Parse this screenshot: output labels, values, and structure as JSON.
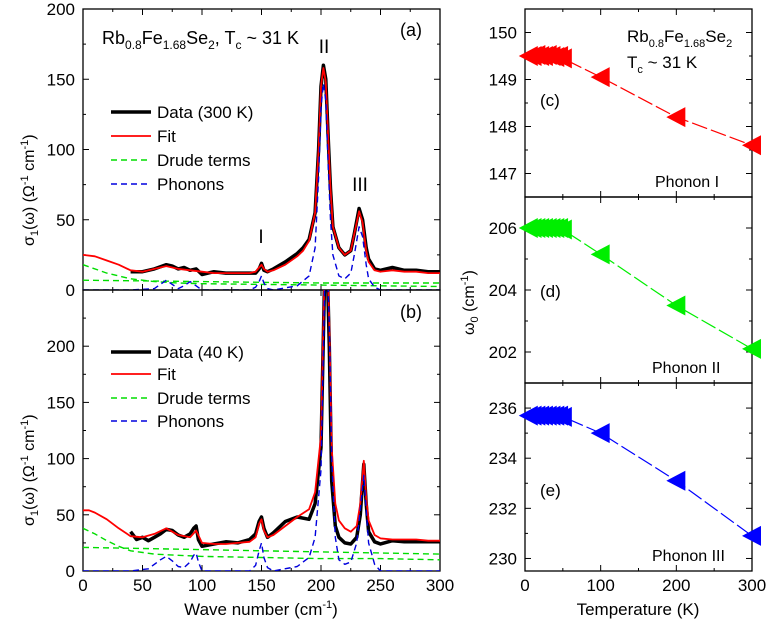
{
  "chart_data": [
    {
      "id": "a",
      "type": "line",
      "panel_label": "(a)",
      "title": "Rb0.8Fe1.68Se2, Tc ~ 31 K",
      "title_parts": {
        "el1": "Rb",
        "sub1": "0.8",
        "el2": "Fe",
        "sub2": "1.68",
        "el3": "Se",
        "sub3": "2",
        "sep": ", ",
        "tc": "T",
        "tc_sub": "c",
        "tc_val": " ~ 31 K"
      },
      "xlabel": "",
      "ylabel": "σ1(ω) (Ω-1 cm-1)",
      "ylabel_parts": {
        "a": "σ",
        "b": "1",
        "c": "(ω) (Ω",
        "d": "-1",
        "e": " cm",
        "f": "-1",
        "g": ")"
      },
      "xlim": [
        0,
        300
      ],
      "ylim": [
        0,
        200
      ],
      "yticks": [
        "0",
        "50",
        "100",
        "150",
        "200"
      ],
      "grid": false,
      "legend_position": "middle-left",
      "annotations": [
        {
          "text": "I",
          "x": 150,
          "y": 27
        },
        {
          "text": "II",
          "x": 202,
          "y": 174
        },
        {
          "text": "III",
          "x": 234,
          "y": 67
        }
      ],
      "legend": [
        "Data (300 K)",
        "Fit",
        "Drude terms",
        "Phonons"
      ],
      "series": [
        {
          "name": "Data (300 K)",
          "color": "#000000",
          "style": "solid",
          "x": [
            40,
            50,
            60,
            70,
            75,
            80,
            85,
            90,
            95,
            100,
            110,
            120,
            130,
            140,
            145,
            148,
            150,
            152,
            155,
            160,
            170,
            180,
            185,
            190,
            195,
            198,
            200,
            202,
            204,
            206,
            208,
            210,
            215,
            220,
            225,
            228,
            232,
            235,
            238,
            240,
            245,
            250,
            260,
            270,
            280,
            290,
            300
          ],
          "y": [
            13,
            13,
            15,
            18,
            17,
            15,
            16,
            14,
            15,
            11,
            13,
            12,
            12,
            12,
            12,
            15,
            19,
            14,
            13,
            15,
            20,
            26,
            30,
            36,
            55,
            100,
            145,
            160,
            150,
            110,
            72,
            45,
            30,
            25,
            28,
            40,
            58,
            50,
            30,
            22,
            15,
            14,
            16,
            14,
            14,
            13,
            13
          ]
        },
        {
          "name": "Fit",
          "color": "#ff0000",
          "style": "solid",
          "x": [
            0,
            10,
            20,
            30,
            40,
            50,
            60,
            70,
            80,
            90,
            100,
            110,
            120,
            130,
            140,
            145,
            148,
            150,
            152,
            155,
            160,
            170,
            180,
            185,
            190,
            195,
            198,
            200,
            202,
            204,
            206,
            208,
            210,
            215,
            220,
            225,
            228,
            232,
            235,
            238,
            240,
            245,
            250,
            260,
            270,
            280,
            290,
            300
          ],
          "y": [
            25,
            24,
            21,
            18,
            14,
            13,
            15,
            17,
            15,
            14,
            13,
            12,
            12,
            12,
            12,
            13,
            16,
            18,
            15,
            13,
            14,
            18,
            24,
            28,
            35,
            55,
            100,
            145,
            158,
            148,
            110,
            72,
            45,
            30,
            25,
            28,
            40,
            56,
            48,
            28,
            20,
            14,
            13,
            14,
            13,
            13,
            12,
            12
          ]
        },
        {
          "name": "Drude terms",
          "color": "#00dd00",
          "style": "dashed",
          "x": [
            0,
            20,
            40,
            60,
            80,
            100,
            150,
            200,
            250,
            300
          ],
          "y": [
            18,
            12,
            8,
            6,
            5,
            4.5,
            4,
            3.5,
            3,
            2.5
          ]
        },
        {
          "name": "Drude terms",
          "color": "#00dd00",
          "style": "dashed",
          "x": [
            0,
            50,
            100,
            150,
            200,
            250,
            300
          ],
          "y": [
            7,
            6.5,
            6,
            5.5,
            5,
            5,
            5
          ]
        },
        {
          "name": "Phonons",
          "color": "#0000dd",
          "style": "dashed",
          "x": [
            0,
            40,
            60,
            65,
            70,
            75,
            80,
            85,
            90,
            95,
            100,
            140,
            145,
            148,
            150,
            152,
            155,
            160,
            180,
            190,
            195,
            198,
            200,
            202,
            204,
            206,
            208,
            210,
            215,
            220,
            225,
            228,
            232,
            235,
            238,
            240,
            245,
            250,
            300
          ],
          "y": [
            0,
            0,
            1,
            4,
            7,
            4,
            1,
            3,
            6,
            3,
            0,
            0,
            2,
            6,
            10,
            5,
            1,
            0,
            3,
            10,
            30,
            80,
            130,
            147,
            135,
            90,
            50,
            25,
            10,
            8,
            12,
            25,
            45,
            38,
            18,
            8,
            2,
            0,
            0
          ]
        }
      ]
    },
    {
      "id": "b",
      "type": "line",
      "panel_label": "(b)",
      "xlabel": "Wave number (cm-1)",
      "xlabel_parts": {
        "a": "Wave number (cm",
        "b": "-1",
        "c": ")"
      },
      "ylabel": "σ1(ω) (Ω-1 cm-1)",
      "ylabel_parts": {
        "a": "σ",
        "b": "1",
        "c": "(ω) (Ω",
        "d": "-1",
        "e": " cm",
        "f": "-1",
        "g": ")"
      },
      "xlim": [
        0,
        300
      ],
      "ylim": [
        0,
        250
      ],
      "xticks": [
        "0",
        "50",
        "100",
        "150",
        "200",
        "250",
        "300"
      ],
      "yticks": [
        "0",
        "50",
        "100",
        "150",
        "200"
      ],
      "grid": false,
      "legend_position": "upper-middle",
      "legend": [
        "Data (40 K)",
        "Fit",
        "Drude terms",
        "Phonons"
      ],
      "series": [
        {
          "name": "Data (40 K)",
          "color": "#000000",
          "style": "solid",
          "x": [
            40,
            45,
            50,
            55,
            60,
            65,
            70,
            75,
            80,
            85,
            90,
            93,
            95,
            97,
            100,
            110,
            120,
            130,
            140,
            145,
            148,
            150,
            152,
            155,
            160,
            170,
            180,
            190,
            195,
            200,
            203,
            205,
            207,
            209,
            212,
            215,
            220,
            225,
            230,
            233,
            236,
            238,
            240,
            245,
            250,
            260,
            270,
            280,
            290,
            300
          ],
          "y": [
            35,
            28,
            30,
            27,
            30,
            33,
            37,
            36,
            32,
            30,
            33,
            38,
            40,
            28,
            22,
            24,
            26,
            25,
            28,
            33,
            44,
            48,
            38,
            30,
            34,
            44,
            48,
            46,
            60,
            110,
            260,
            280,
            200,
            80,
            40,
            30,
            25,
            24,
            30,
            50,
            95,
            60,
            35,
            26,
            24,
            27,
            26,
            26,
            26,
            26
          ]
        },
        {
          "name": "Fit",
          "color": "#ff0000",
          "style": "solid",
          "x": [
            0,
            5,
            10,
            20,
            30,
            40,
            50,
            60,
            70,
            80,
            90,
            95,
            100,
            110,
            120,
            130,
            140,
            145,
            148,
            150,
            152,
            155,
            160,
            170,
            180,
            190,
            195,
            200,
            203,
            205,
            207,
            209,
            212,
            215,
            220,
            225,
            230,
            233,
            236,
            238,
            240,
            245,
            250,
            260,
            270,
            280,
            290,
            300
          ],
          "y": [
            54,
            54,
            52,
            46,
            38,
            31,
            30,
            33,
            38,
            32,
            30,
            36,
            25,
            24,
            24,
            25,
            26,
            30,
            42,
            46,
            36,
            30,
            32,
            40,
            48,
            55,
            70,
            120,
            270,
            290,
            220,
            110,
            60,
            45,
            38,
            35,
            40,
            60,
            98,
            65,
            45,
            32,
            29,
            28,
            28,
            28,
            27,
            27
          ]
        },
        {
          "name": "Drude terms",
          "color": "#00dd00",
          "style": "dashed",
          "x": [
            0,
            10,
            20,
            30,
            40,
            60,
            80,
            100,
            150,
            200,
            250,
            300
          ],
          "y": [
            38,
            33,
            27,
            22,
            18,
            15,
            14,
            13,
            12,
            11,
            11,
            10
          ]
        },
        {
          "name": "Drude terms",
          "color": "#00dd00",
          "style": "dashed",
          "x": [
            0,
            50,
            100,
            150,
            200,
            250,
            300
          ],
          "y": [
            21,
            20,
            19,
            18,
            17,
            16,
            15
          ]
        },
        {
          "name": "Phonons",
          "color": "#0000dd",
          "style": "dashed",
          "x": [
            0,
            40,
            55,
            60,
            65,
            70,
            75,
            80,
            85,
            90,
            93,
            95,
            97,
            100,
            140,
            145,
            148,
            150,
            152,
            155,
            160,
            180,
            190,
            195,
            200,
            203,
            205,
            207,
            209,
            212,
            215,
            220,
            225,
            230,
            233,
            236,
            238,
            240,
            245,
            250,
            300
          ],
          "y": [
            0,
            0,
            2,
            6,
            10,
            13,
            9,
            4,
            3,
            8,
            14,
            16,
            8,
            0,
            0,
            5,
            18,
            25,
            12,
            3,
            0,
            4,
            12,
            30,
            90,
            250,
            280,
            220,
            100,
            30,
            10,
            6,
            8,
            25,
            55,
            85,
            55,
            25,
            6,
            0,
            0
          ]
        }
      ]
    },
    {
      "id": "c",
      "type": "line",
      "panel_label": "(c)",
      "title": "Rb0.8Fe1.68Se2 Tc ~ 31 K",
      "title_parts": {
        "el1": "Rb",
        "sub1": "0.8",
        "el2": "Fe",
        "sub2": "1.68",
        "el3": "Se",
        "sub3": "2",
        "tc": "T",
        "tc_sub": "c",
        "tc_val": " ~ 31 K"
      },
      "phonon_label": "Phonon I",
      "xlim": [
        0,
        300
      ],
      "ylim": [
        146.5,
        150.5
      ],
      "yticks": [
        147,
        148,
        149,
        150
      ],
      "series": [
        {
          "name": "Phonon I",
          "color": "#ff0000",
          "marker": "left-triangle",
          "x": [
            5,
            10,
            15,
            20,
            25,
            30,
            35,
            40,
            45,
            50,
            100,
            200,
            300
          ],
          "y": [
            149.5,
            149.5,
            149.52,
            149.5,
            149.5,
            149.52,
            149.5,
            149.48,
            149.5,
            149.45,
            149.05,
            148.2,
            147.6
          ]
        }
      ]
    },
    {
      "id": "d",
      "type": "line",
      "panel_label": "(d)",
      "ylabel": "ω0 (cm-1)",
      "ylabel_parts": {
        "a": "ω",
        "b": "0",
        "c": " (cm",
        "d": "-1",
        "e": ")"
      },
      "phonon_label": "Phonon II",
      "xlim": [
        0,
        300
      ],
      "ylim": [
        201,
        207
      ],
      "yticks": [
        202,
        204,
        206
      ],
      "series": [
        {
          "name": "Phonon II",
          "color": "#00ee00",
          "marker": "left-triangle",
          "x": [
            5,
            10,
            15,
            20,
            25,
            30,
            35,
            40,
            45,
            50,
            100,
            200,
            300
          ],
          "y": [
            206,
            206,
            206,
            206,
            206,
            206,
            206,
            206,
            206,
            205.95,
            205.15,
            203.5,
            202.1
          ]
        }
      ]
    },
    {
      "id": "e",
      "type": "line",
      "panel_label": "(e)",
      "xlabel": "Temperature (K)",
      "phonon_label": "Phonon III",
      "xlim": [
        0,
        300
      ],
      "ylim": [
        229.5,
        237
      ],
      "xticks": [
        0,
        100,
        200,
        300
      ],
      "yticks": [
        230,
        232,
        234,
        236
      ],
      "series": [
        {
          "name": "Phonon III",
          "color": "#0000ff",
          "marker": "left-triangle",
          "x": [
            5,
            10,
            15,
            20,
            25,
            30,
            35,
            40,
            45,
            50,
            100,
            200,
            300
          ],
          "y": [
            235.7,
            235.7,
            235.7,
            235.7,
            235.7,
            235.7,
            235.7,
            235.7,
            235.7,
            235.65,
            235,
            233.1,
            230.9
          ]
        }
      ]
    }
  ]
}
